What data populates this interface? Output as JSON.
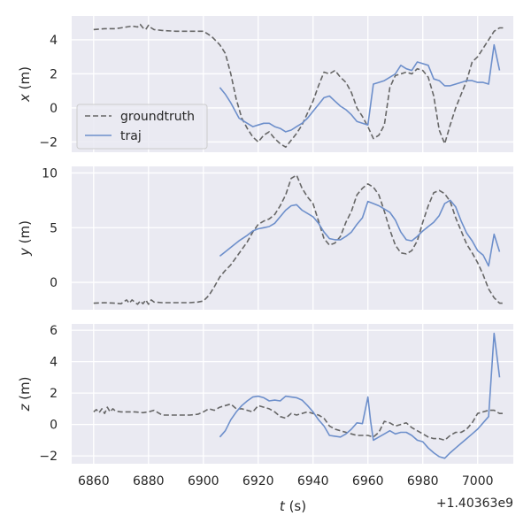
{
  "colors": {
    "panel_bg": "#EAEAF2",
    "grid": "#FFFFFF",
    "groundtruth": "#666666",
    "traj": "#6D8FCB",
    "text": "#262626",
    "legend_bg": "#EAEAF2",
    "legend_edge": "#CCCCCC"
  },
  "chart_data": {
    "type": "line",
    "xlabel": "t (s)",
    "x_offset_label": "+1.40363e9",
    "xlim": [
      6852,
      7013
    ],
    "xticks": [
      6860,
      6880,
      6900,
      6920,
      6940,
      6960,
      6980,
      7000
    ],
    "legend": {
      "placement": "lower-left",
      "entries": [
        "groundtruth",
        "traj"
      ]
    },
    "panels": [
      {
        "ylabel": "x (m)",
        "ylim": [
          -2.6,
          5.4
        ],
        "yticks": [
          -2,
          0,
          2,
          4
        ],
        "series": [
          {
            "name": "groundtruth",
            "style": "dashed",
            "x": [
              6860,
              6864,
              6868,
              6870,
              6872,
              6874,
              6876,
              6877,
              6878,
              6879,
              6880,
              6881,
              6882,
              6885,
              6890,
              6895,
              6900,
              6903,
              6906,
              6908,
              6910,
              6912,
              6914,
              6916,
              6918,
              6920,
              6922,
              6924,
              6926,
              6928,
              6930,
              6932,
              6934,
              6936,
              6938,
              6940,
              6942,
              6944,
              6946,
              6948,
              6950,
              6952,
              6954,
              6956,
              6958,
              6960,
              6962,
              6964,
              6966,
              6968,
              6970,
              6972,
              6974,
              6976,
              6978,
              6980,
              6982,
              6984,
              6986,
              6988,
              6990,
              6992,
              6994,
              6996,
              6998,
              7000,
              7002,
              7004,
              7006,
              7008,
              7010
            ],
            "y": [
              4.6,
              4.65,
              4.65,
              4.7,
              4.75,
              4.8,
              4.75,
              4.9,
              4.7,
              4.6,
              4.85,
              4.7,
              4.6,
              4.55,
              4.5,
              4.5,
              4.5,
              4.2,
              3.7,
              3.2,
              2.0,
              0.5,
              -0.6,
              -1.2,
              -1.7,
              -2.0,
              -1.6,
              -1.4,
              -1.8,
              -2.1,
              -2.3,
              -1.9,
              -1.5,
              -1.0,
              -0.3,
              0.4,
              1.3,
              2.1,
              2.0,
              2.2,
              1.8,
              1.5,
              0.9,
              0.0,
              -0.5,
              -1.1,
              -1.8,
              -1.6,
              -1.0,
              1.2,
              1.9,
              2.0,
              2.1,
              2.0,
              2.3,
              2.2,
              1.8,
              0.7,
              -1.3,
              -2.1,
              -1.0,
              0.0,
              0.8,
              1.6,
              2.7,
              3.0,
              3.5,
              4.0,
              4.5,
              4.7,
              4.7
            ]
          },
          {
            "name": "traj",
            "style": "solid",
            "x": [
              6906,
              6908,
              6910,
              6913,
              6916,
              6918,
              6920,
              6922,
              6924,
              6926,
              6928,
              6930,
              6932,
              6934,
              6936,
              6938,
              6940,
              6942,
              6944,
              6946,
              6948,
              6950,
              6952,
              6954,
              6956,
              6958,
              6960,
              6962,
              6964,
              6966,
              6968,
              6970,
              6972,
              6974,
              6976,
              6978,
              6980,
              6982,
              6984,
              6986,
              6988,
              6990,
              6992,
              6994,
              6996,
              6998,
              7000,
              7002,
              7004,
              7006,
              7008
            ],
            "y": [
              1.2,
              0.8,
              0.3,
              -0.6,
              -0.9,
              -1.1,
              -1.0,
              -0.9,
              -0.9,
              -1.1,
              -1.2,
              -1.4,
              -1.3,
              -1.1,
              -0.9,
              -0.6,
              -0.2,
              0.2,
              0.6,
              0.7,
              0.4,
              0.1,
              -0.1,
              -0.4,
              -0.8,
              -0.9,
              -1.0,
              1.4,
              1.5,
              1.6,
              1.8,
              2.0,
              2.5,
              2.3,
              2.2,
              2.7,
              2.6,
              2.5,
              1.7,
              1.6,
              1.3,
              1.3,
              1.4,
              1.5,
              1.6,
              1.6,
              1.5,
              1.5,
              1.4,
              3.7,
              2.2
            ]
          }
        ]
      },
      {
        "ylabel": "y (m)",
        "ylim": [
          -2.5,
          10.6
        ],
        "yticks": [
          0,
          5,
          10
        ],
        "series": [
          {
            "name": "groundtruth",
            "style": "dashed",
            "x": [
              6860,
              6864,
              6868,
              6870,
              6872,
              6873,
              6874,
              6876,
              6877,
              6878,
              6879,
              6880,
              6881,
              6882,
              6885,
              6890,
              6895,
              6898,
              6900,
              6902,
              6904,
              6906,
              6908,
              6910,
              6912,
              6914,
              6916,
              6918,
              6920,
              6922,
              6924,
              6926,
              6928,
              6930,
              6932,
              6934,
              6936,
              6938,
              6940,
              6942,
              6944,
              6946,
              6948,
              6950,
              6952,
              6954,
              6956,
              6958,
              6960,
              6962,
              6964,
              6966,
              6968,
              6970,
              6972,
              6974,
              6976,
              6978,
              6980,
              6982,
              6984,
              6986,
              6988,
              6990,
              6992,
              6994,
              6996,
              6998,
              7000,
              7002,
              7004,
              7006,
              7008,
              7010
            ],
            "y": [
              -1.9,
              -1.85,
              -1.9,
              -1.95,
              -1.6,
              -1.9,
              -1.6,
              -2.0,
              -1.7,
              -1.95,
              -1.6,
              -2.0,
              -1.6,
              -1.8,
              -1.85,
              -1.85,
              -1.85,
              -1.8,
              -1.7,
              -1.2,
              -0.4,
              0.5,
              1.1,
              1.6,
              2.3,
              3.0,
              3.7,
              4.6,
              5.3,
              5.6,
              5.8,
              6.2,
              7.0,
              8.0,
              9.5,
              9.8,
              8.6,
              7.8,
              7.2,
              5.6,
              4.0,
              3.4,
              3.6,
              4.2,
              5.5,
              6.5,
              8.0,
              8.6,
              9.0,
              8.7,
              8.0,
              6.5,
              4.8,
              3.4,
              2.7,
              2.6,
              2.9,
              3.8,
              5.5,
              7.0,
              8.2,
              8.4,
              8.1,
              7.4,
              5.9,
              4.7,
              3.5,
              2.7,
              1.8,
              0.7,
              -0.6,
              -1.4,
              -1.9,
              -1.9
            ]
          },
          {
            "name": "traj",
            "style": "solid",
            "x": [
              6906,
              6908,
              6910,
              6913,
              6916,
              6918,
              6920,
              6922,
              6924,
              6926,
              6928,
              6930,
              6932,
              6934,
              6936,
              6938,
              6940,
              6942,
              6944,
              6946,
              6948,
              6950,
              6952,
              6954,
              6956,
              6958,
              6960,
              6962,
              6964,
              6966,
              6968,
              6970,
              6972,
              6974,
              6976,
              6978,
              6980,
              6982,
              6984,
              6986,
              6988,
              6990,
              6992,
              6994,
              6996,
              6998,
              7000,
              7002,
              7004,
              7006,
              7008
            ],
            "y": [
              2.4,
              2.8,
              3.2,
              3.8,
              4.3,
              4.7,
              4.9,
              5.0,
              5.1,
              5.4,
              6.0,
              6.6,
              7.0,
              7.1,
              6.6,
              6.3,
              6.0,
              5.4,
              4.6,
              4.0,
              3.9,
              3.9,
              4.2,
              4.6,
              5.3,
              5.9,
              7.4,
              7.2,
              7.0,
              6.7,
              6.4,
              5.7,
              4.6,
              3.9,
              3.8,
              4.2,
              4.7,
              5.1,
              5.5,
              6.1,
              7.2,
              7.5,
              6.9,
              5.6,
              4.5,
              3.8,
              2.9,
              2.5,
              1.5,
              4.4,
              2.8
            ]
          }
        ]
      },
      {
        "ylabel": "z (m)",
        "ylim": [
          -2.5,
          6.4
        ],
        "yticks": [
          -2,
          0,
          2,
          4,
          6
        ],
        "series": [
          {
            "name": "groundtruth",
            "style": "dashed",
            "x": [
              6860,
              6861,
              6862,
              6863,
              6864,
              6865,
              6866,
              6867,
              6868,
              6870,
              6875,
              6878,
              6880,
              6882,
              6885,
              6890,
              6895,
              6898,
              6900,
              6902,
              6904,
              6906,
              6908,
              6910,
              6912,
              6914,
              6916,
              6918,
              6920,
              6922,
              6924,
              6926,
              6928,
              6930,
              6932,
              6934,
              6936,
              6938,
              6940,
              6942,
              6944,
              6946,
              6948,
              6950,
              6952,
              6954,
              6956,
              6958,
              6960,
              6962,
              6964,
              6966,
              6968,
              6970,
              6972,
              6974,
              6976,
              6978,
              6980,
              6982,
              6984,
              6986,
              6988,
              6990,
              6992,
              6994,
              6996,
              6998,
              7000,
              7002,
              7004,
              7006,
              7008,
              7010
            ],
            "y": [
              0.8,
              0.95,
              0.75,
              1.0,
              0.7,
              1.1,
              0.8,
              1.0,
              0.85,
              0.8,
              0.8,
              0.75,
              0.8,
              0.9,
              0.6,
              0.6,
              0.6,
              0.65,
              0.8,
              1.0,
              0.9,
              1.1,
              1.2,
              1.3,
              1.0,
              1.0,
              0.9,
              0.8,
              1.2,
              1.1,
              1.0,
              0.8,
              0.5,
              0.4,
              0.7,
              0.6,
              0.7,
              0.8,
              0.7,
              0.6,
              0.4,
              -0.1,
              -0.3,
              -0.4,
              -0.5,
              -0.6,
              -0.7,
              -0.7,
              -0.7,
              -0.8,
              -0.5,
              0.2,
              0.1,
              -0.1,
              0.0,
              0.1,
              -0.2,
              -0.4,
              -0.6,
              -0.8,
              -0.9,
              -0.9,
              -1.0,
              -0.7,
              -0.5,
              -0.5,
              -0.3,
              0.1,
              0.7,
              0.8,
              0.9,
              0.9,
              0.7,
              0.7
            ]
          },
          {
            "name": "traj",
            "style": "solid",
            "x": [
              6906,
              6908,
              6910,
              6912,
              6914,
              6916,
              6918,
              6920,
              6922,
              6924,
              6926,
              6928,
              6930,
              6932,
              6934,
              6936,
              6938,
              6940,
              6942,
              6944,
              6946,
              6948,
              6950,
              6952,
              6954,
              6956,
              6958,
              6960,
              6961,
              6962,
              6964,
              6966,
              6968,
              6970,
              6972,
              6974,
              6976,
              6978,
              6980,
              6982,
              6984,
              6986,
              6988,
              6990,
              6992,
              6994,
              6996,
              6998,
              7000,
              7002,
              7004,
              7006,
              7008
            ],
            "y": [
              -0.8,
              -0.4,
              0.3,
              0.8,
              1.2,
              1.5,
              1.75,
              1.8,
              1.7,
              1.5,
              1.55,
              1.5,
              1.8,
              1.75,
              1.7,
              1.55,
              1.2,
              0.8,
              0.3,
              -0.1,
              -0.7,
              -0.75,
              -0.8,
              -0.6,
              -0.3,
              0.1,
              0.05,
              1.75,
              0.2,
              -1.0,
              -0.8,
              -0.6,
              -0.4,
              -0.6,
              -0.5,
              -0.5,
              -0.7,
              -1.0,
              -1.1,
              -1.5,
              -1.8,
              -2.05,
              -2.15,
              -1.8,
              -1.5,
              -1.2,
              -0.9,
              -0.6,
              -0.3,
              0.1,
              0.5,
              5.8,
              3.0
            ]
          }
        ]
      }
    ]
  }
}
